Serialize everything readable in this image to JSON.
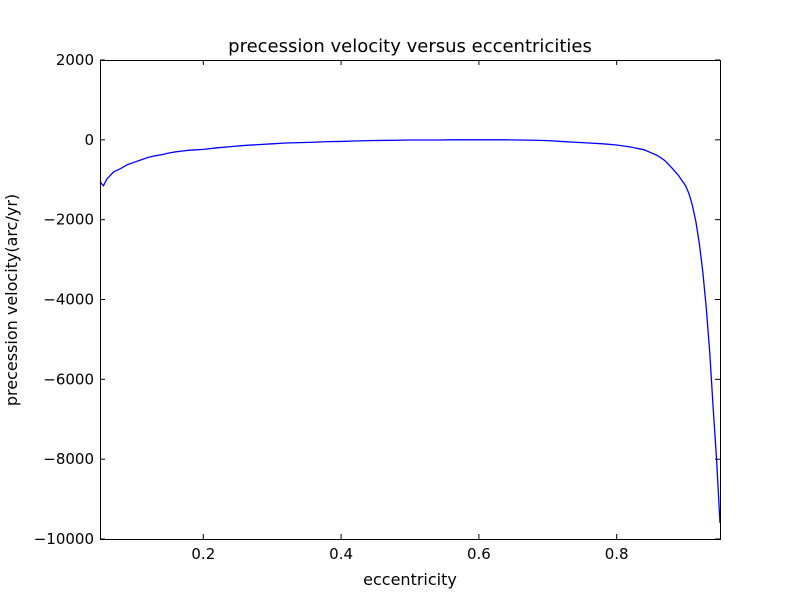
{
  "chart_data": {
    "type": "line",
    "title": "precession velocity versus eccentricities",
    "xlabel": "eccentricity",
    "ylabel": "precession velocity(arc/yr)",
    "xlim": [
      0.05,
      0.95
    ],
    "ylim": [
      -10000,
      2000
    ],
    "xticks": [
      0.2,
      0.4,
      0.6,
      0.8
    ],
    "xtick_labels": [
      "0.2",
      "0.4",
      "0.6",
      "0.8"
    ],
    "yticks": [
      2000,
      0,
      -2000,
      -4000,
      -6000,
      -8000,
      -10000
    ],
    "ytick_labels": [
      "2000",
      "0",
      "−2000",
      "−4000",
      "−6000",
      "−8000",
      "−10000"
    ],
    "grid": false,
    "legend": "none",
    "series": [
      {
        "color": "#0000ff",
        "x": [
          0.05,
          0.055,
          0.06,
          0.07,
          0.08,
          0.09,
          0.1,
          0.11,
          0.12,
          0.13,
          0.14,
          0.15,
          0.16,
          0.17,
          0.18,
          0.19,
          0.2,
          0.22,
          0.24,
          0.26,
          0.28,
          0.3,
          0.32,
          0.34,
          0.36,
          0.38,
          0.4,
          0.42,
          0.44,
          0.46,
          0.48,
          0.5,
          0.52,
          0.54,
          0.56,
          0.58,
          0.6,
          0.62,
          0.64,
          0.66,
          0.68,
          0.7,
          0.72,
          0.74,
          0.76,
          0.78,
          0.8,
          0.82,
          0.84,
          0.86,
          0.87,
          0.88,
          0.89,
          0.9,
          0.905,
          0.91,
          0.915,
          0.92,
          0.925,
          0.93,
          0.935,
          0.94,
          0.945,
          0.95
        ],
        "y": [
          -1050,
          -1150,
          -980,
          -800,
          -720,
          -620,
          -560,
          -500,
          -440,
          -400,
          -370,
          -330,
          -300,
          -280,
          -260,
          -250,
          -240,
          -200,
          -170,
          -140,
          -120,
          -100,
          -80,
          -70,
          -60,
          -45,
          -40,
          -30,
          -20,
          -15,
          -10,
          -5,
          -5,
          -5,
          0,
          0,
          0,
          0,
          0,
          -5,
          -10,
          -20,
          -40,
          -60,
          -80,
          -100,
          -130,
          -180,
          -250,
          -400,
          -520,
          -700,
          -900,
          -1150,
          -1350,
          -1650,
          -2050,
          -2600,
          -3300,
          -4200,
          -5300,
          -6700,
          -8000,
          -9600
        ]
      }
    ]
  }
}
